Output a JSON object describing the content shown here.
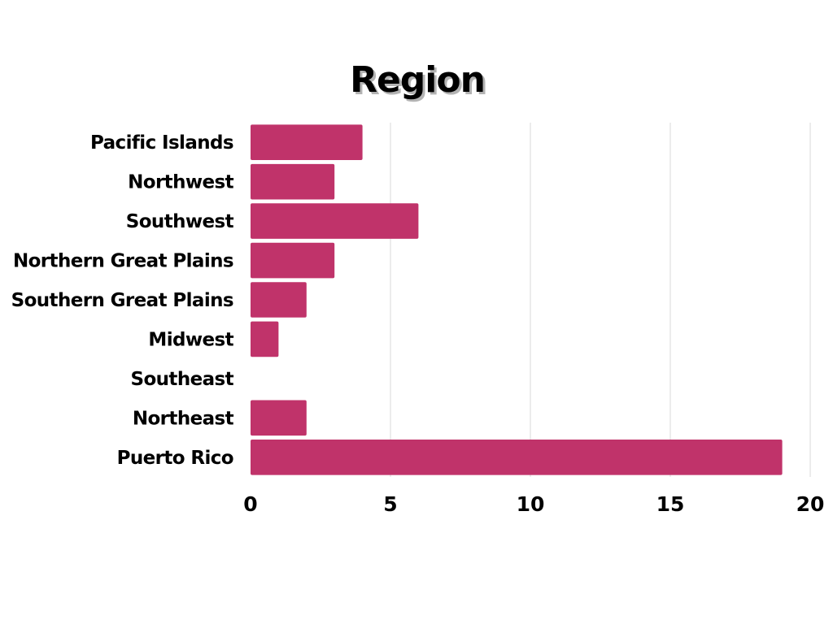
{
  "chart_data": {
    "type": "bar",
    "orientation": "horizontal",
    "title": "Region",
    "xlabel": "",
    "ylabel": "",
    "categories": [
      "Pacific Islands",
      "Northwest",
      "Southwest",
      "Northern Great Plains",
      "Southern Great Plains",
      "Midwest",
      "Southeast",
      "Northeast",
      "Puerto Rico"
    ],
    "values": [
      4,
      3,
      6,
      3,
      2,
      1,
      0,
      2,
      19
    ],
    "xlim": [
      0,
      20
    ],
    "xticks": [
      0,
      5,
      10,
      15,
      20
    ],
    "xtick_labels": [
      "0",
      "5",
      "10",
      "15",
      "20"
    ],
    "grid": "vertical",
    "legend": "none",
    "bar_color": "#c0336a"
  }
}
